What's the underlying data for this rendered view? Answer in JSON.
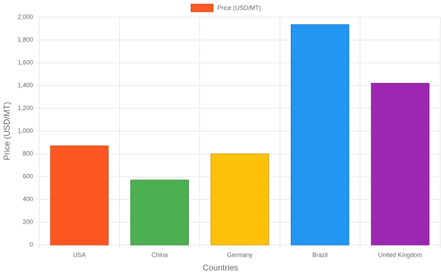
{
  "chart_data": {
    "type": "bar",
    "x_label": "Countries",
    "y_label": "Price (USD/MT)",
    "categories": [
      "USA",
      "China",
      "Germany",
      "Brazil",
      "United Kingdom"
    ],
    "series": [
      {
        "name": "Price (USD/MT)",
        "colors": [
          "#FF5722",
          "#4CAF50",
          "#FFC107",
          "#2196F3",
          "#9C27B0"
        ],
        "values": [
          870,
          570,
          800,
          1935,
          1420
        ]
      }
    ],
    "ylim": [
      0,
      2000
    ],
    "yticks": [
      0,
      200,
      400,
      600,
      800,
      {
        "value": 1000,
        "label": "1,000"
      },
      {
        "value": 1200,
        "label": "1,200"
      },
      {
        "value": 1400,
        "label": "1,400"
      },
      {
        "value": 1600,
        "label": "1,600"
      },
      {
        "value": 1800,
        "label": "1,800"
      },
      {
        "value": 2000,
        "label": "2,000"
      }
    ],
    "grid": true,
    "legend": "top"
  }
}
